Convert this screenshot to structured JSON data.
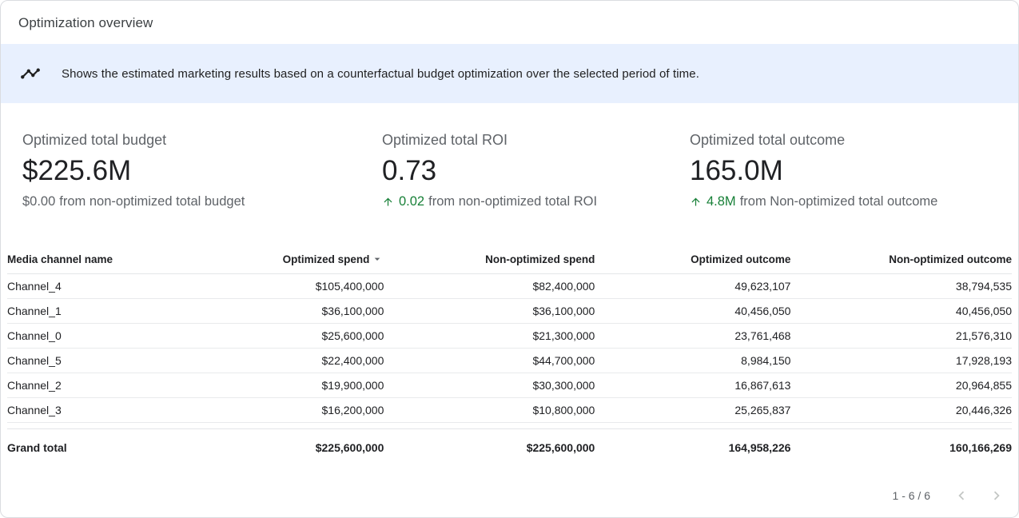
{
  "header": {
    "title": "Optimization overview"
  },
  "banner": {
    "icon": "timeline-chart-icon",
    "text": "Shows the estimated marketing results based on a counterfactual budget optimization over the selected period of time."
  },
  "kpis": [
    {
      "label": "Optimized total budget",
      "value": "$225.6M",
      "delta_value": "$0.00",
      "delta_text": "from non-optimized total budget",
      "positive": false
    },
    {
      "label": "Optimized total ROI",
      "value": "0.73",
      "delta_value": "0.02",
      "delta_text": "from non-optimized total ROI",
      "positive": true
    },
    {
      "label": "Optimized total outcome",
      "value": "165.0M",
      "delta_value": "4.8M",
      "delta_text": "from Non-optimized total outcome",
      "positive": true
    }
  ],
  "table": {
    "columns": [
      "Media channel name",
      "Optimized spend",
      "Non-optimized spend",
      "Optimized outcome",
      "Non-optimized outcome"
    ],
    "sorted_column": "Optimized spend",
    "sort_direction": "desc",
    "sort_icon": "sort-desc-arrow-icon",
    "rows": [
      [
        "Channel_4",
        "$105,400,000",
        "$82,400,000",
        "49,623,107",
        "38,794,535"
      ],
      [
        "Channel_1",
        "$36,100,000",
        "$36,100,000",
        "40,456,050",
        "40,456,050"
      ],
      [
        "Channel_0",
        "$25,600,000",
        "$21,300,000",
        "23,761,468",
        "21,576,310"
      ],
      [
        "Channel_5",
        "$22,400,000",
        "$44,700,000",
        "8,984,150",
        "17,928,193"
      ],
      [
        "Channel_2",
        "$19,900,000",
        "$30,300,000",
        "16,867,613",
        "20,964,855"
      ],
      [
        "Channel_3",
        "$16,200,000",
        "$10,800,000",
        "25,265,837",
        "20,446,326"
      ]
    ],
    "grand_total": [
      "Grand total",
      "$225,600,000",
      "$225,600,000",
      "164,958,226",
      "160,166,269"
    ]
  },
  "pagination": {
    "label": "1 - 6 / 6",
    "prev_icon": "chevron-left-icon",
    "next_icon": "chevron-right-icon"
  },
  "colors": {
    "positive_green": "#188038",
    "banner_background": "#e8f0fe"
  }
}
